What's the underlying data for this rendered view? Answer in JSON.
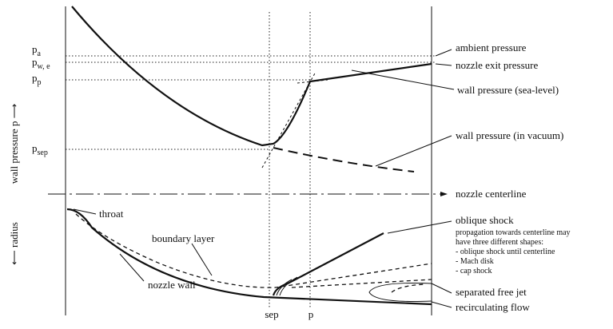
{
  "axes": {
    "y_label": "wall pressure p ⟶",
    "radius_label": "⟵ radius",
    "x_sep": "sep",
    "x_p": "p"
  },
  "pressure_levels": [
    {
      "main": "p",
      "sub": "a"
    },
    {
      "main": "p",
      "sub": "w, e"
    },
    {
      "main": "p",
      "sub": "p"
    },
    {
      "main": "p",
      "sub": "sep"
    }
  ],
  "labels": {
    "ambient": "ambient pressure",
    "exit": "nozzle exit pressure",
    "sea_level": "wall pressure  (sea-level)",
    "vacuum": "wall pressure  (in vacuum)",
    "centerline": "nozzle centerline",
    "throat": "throat",
    "boundary_layer": "boundary layer",
    "nozzle_wall": "nozzle wall",
    "oblique_shock": "oblique shock",
    "shock_note": [
      "propagation towards centerline may",
      "have three different shapes:",
      "- oblique shock until centerline",
      "- Mach disk",
      "- cap shock"
    ],
    "free_jet": "separated free jet",
    "recirculating": "recirculating flow"
  }
}
